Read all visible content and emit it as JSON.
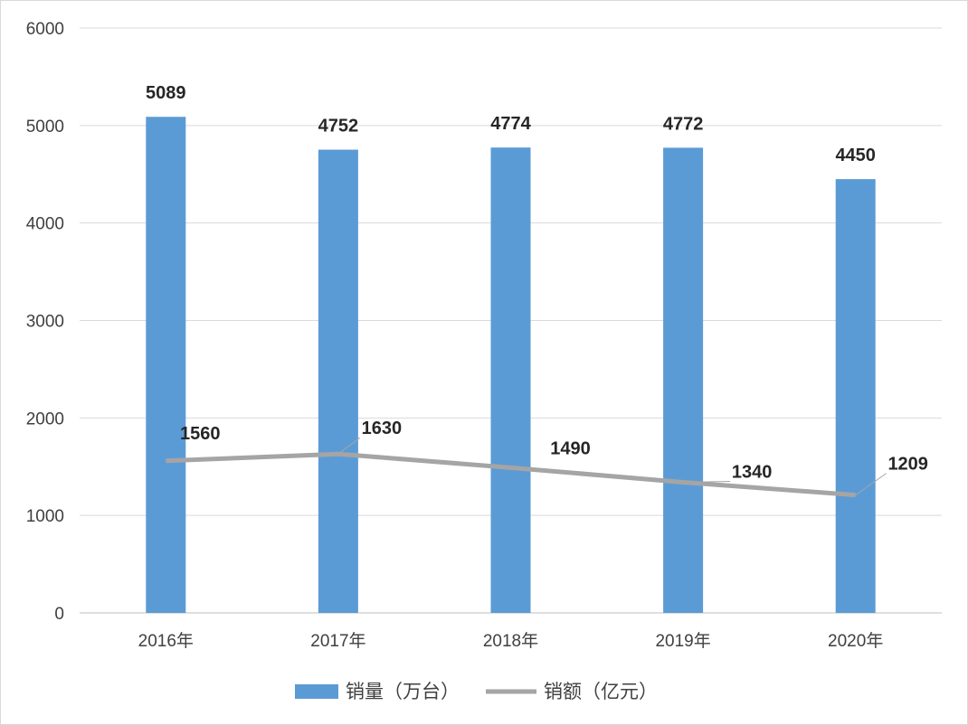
{
  "chart_data": {
    "type": "bar",
    "categories": [
      "2016年",
      "2017年",
      "2018年",
      "2019年",
      "2020年"
    ],
    "series": [
      {
        "name": "销量（万台）",
        "type": "bar",
        "values": [
          5089,
          4752,
          4774,
          4772,
          4450
        ],
        "color": "#5b9bd5"
      },
      {
        "name": "销额（亿元）",
        "type": "line",
        "values": [
          1560,
          1630,
          1490,
          1340,
          1209
        ],
        "color": "#a5a5a5"
      }
    ],
    "ylim": [
      0,
      6000
    ],
    "yticks": [
      0,
      1000,
      2000,
      3000,
      4000,
      5000,
      6000
    ],
    "grid": true,
    "legend_position": "bottom",
    "title": "",
    "xlabel": "",
    "ylabel": ""
  }
}
